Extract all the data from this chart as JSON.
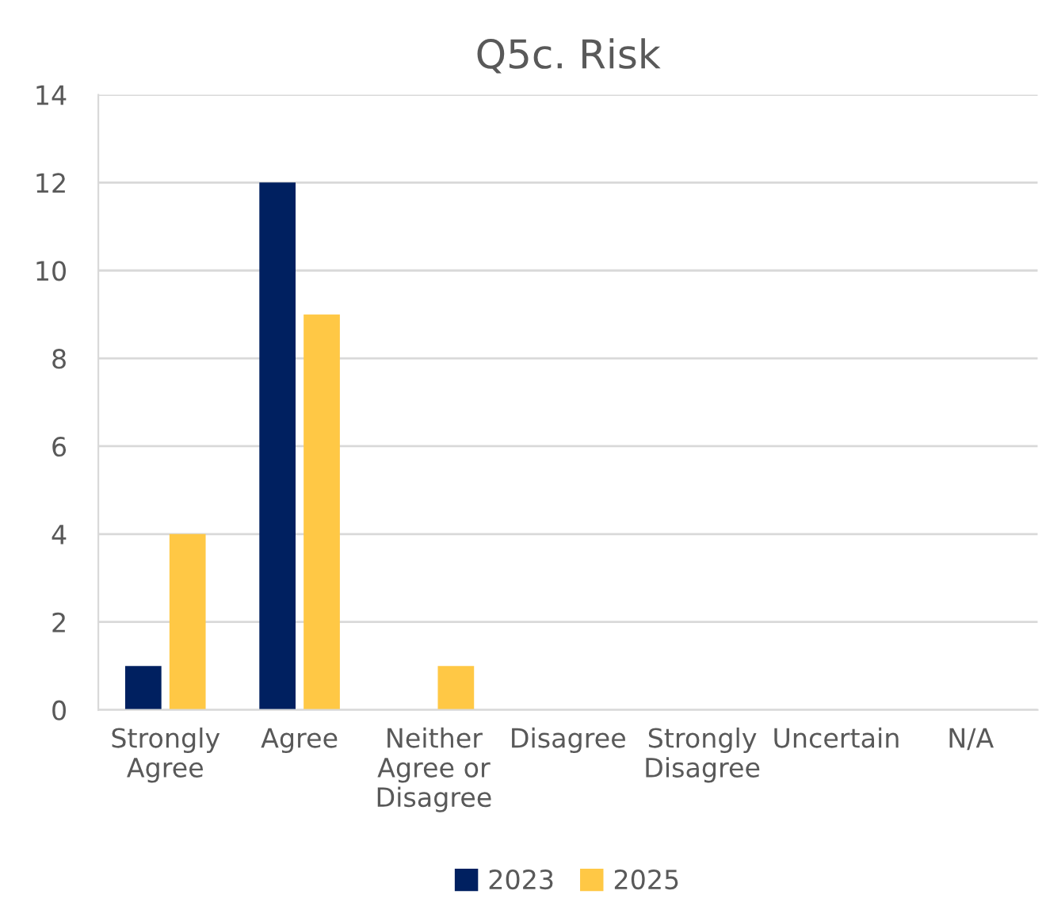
{
  "chart_data": {
    "type": "bar",
    "title": "Q5c. Risk",
    "categories": [
      "Strongly\nAgree",
      "Agree",
      "Neither\nAgree or\nDisagree",
      "Disagree",
      "Strongly\nDisagree",
      "Uncertain",
      "N/A"
    ],
    "series": [
      {
        "name": "2023",
        "color": "#002060",
        "values": [
          1,
          12,
          0,
          0,
          0,
          0,
          0
        ]
      },
      {
        "name": "2025",
        "color": "#ffc845",
        "values": [
          4,
          9,
          1,
          0,
          0,
          0,
          0
        ]
      }
    ],
    "ylim": [
      0,
      14
    ],
    "yticks": [
      0,
      2,
      4,
      6,
      8,
      10,
      12,
      14
    ],
    "grid": "y",
    "legend": "bottom"
  }
}
